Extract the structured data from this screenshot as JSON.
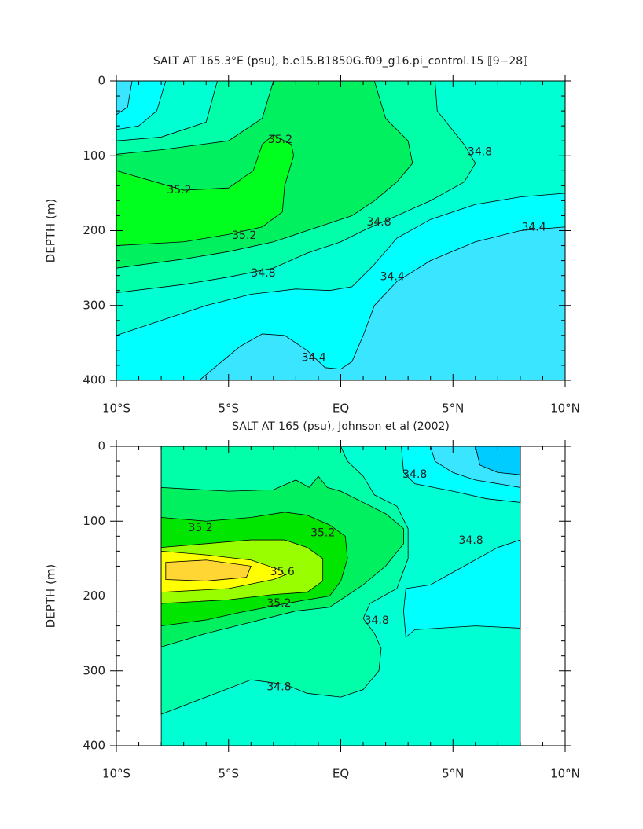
{
  "chart_data": [
    {
      "type": "contour",
      "title": "SALT AT 165.3°E (psu), b.e15.B1850G.f09_g16.pi_control.15 ⟦9−28⟧",
      "y_label": "DEPTH (m)",
      "xlim": [
        -10,
        10
      ],
      "xticks": [
        {
          "value": -10,
          "label": "10°S"
        },
        {
          "value": -5,
          "label": "5°S"
        },
        {
          "value": 0,
          "label": "EQ"
        },
        {
          "value": 5,
          "label": "5°N"
        },
        {
          "value": 10,
          "label": "10°N"
        }
      ],
      "ylim": [
        400,
        0
      ],
      "yticks": [
        0,
        100,
        200,
        300,
        400
      ],
      "regions": [
        {
          "level": 34.2,
          "color": "#3ae6ff",
          "points": [
            [
              -10,
              0
            ],
            [
              10,
              0
            ],
            [
              10,
              400
            ],
            [
              -10,
              400
            ]
          ]
        },
        {
          "level": 34.4,
          "color": "#00ffff",
          "points": [
            [
              -9.3,
              0
            ],
            [
              10,
              0
            ],
            [
              10,
              195
            ],
            [
              8,
              200
            ],
            [
              6,
              215
            ],
            [
              4,
              240
            ],
            [
              2.5,
              268
            ],
            [
              1.5,
              300
            ],
            [
              1,
              340
            ],
            [
              0.5,
              375
            ],
            [
              0,
              385
            ],
            [
              -0.7,
              383
            ],
            [
              -1.5,
              360
            ],
            [
              -2.5,
              340
            ],
            [
              -3.5,
              338
            ],
            [
              -4.5,
              355
            ],
            [
              -5.5,
              380
            ],
            [
              -6.3,
              400
            ],
            [
              -10,
              400
            ],
            [
              -10,
              45
            ],
            [
              -9.5,
              35
            ]
          ]
        },
        {
          "level": 34.6,
          "color": "#00ffd2",
          "points": [
            [
              -7.8,
              0
            ],
            [
              10,
              0
            ],
            [
              10,
              150
            ],
            [
              8,
              155
            ],
            [
              6,
              165
            ],
            [
              4,
              185
            ],
            [
              2.5,
              210
            ],
            [
              1.5,
              245
            ],
            [
              0.5,
              275
            ],
            [
              -0.5,
              280
            ],
            [
              -2,
              278
            ],
            [
              -4,
              285
            ],
            [
              -6,
              300
            ],
            [
              -8,
              320
            ],
            [
              -10,
              340
            ],
            [
              -10,
              65
            ],
            [
              -9,
              60
            ],
            [
              -8.2,
              40
            ]
          ]
        },
        {
          "level": 34.8,
          "color": "#00ffa8",
          "points": [
            [
              -5.5,
              0
            ],
            [
              4.2,
              0
            ],
            [
              4.3,
              40
            ],
            [
              5.5,
              85
            ],
            [
              6,
              110
            ],
            [
              5.5,
              135
            ],
            [
              4,
              160
            ],
            [
              2.5,
              180
            ],
            [
              1,
              200
            ],
            [
              0,
              215
            ],
            [
              -1.5,
              230
            ],
            [
              -3,
              250
            ],
            [
              -5,
              262
            ],
            [
              -7,
              272
            ],
            [
              -10,
              283
            ],
            [
              -10,
              80
            ],
            [
              -8,
              75
            ],
            [
              -6,
              55
            ]
          ]
        },
        {
          "level": 35.0,
          "color": "#00f060",
          "points": [
            [
              -3,
              0
            ],
            [
              1.5,
              0
            ],
            [
              2,
              50
            ],
            [
              3,
              80
            ],
            [
              3.2,
              110
            ],
            [
              2.5,
              135
            ],
            [
              1.5,
              160
            ],
            [
              0.5,
              180
            ],
            [
              -1,
              195
            ],
            [
              -3,
              215
            ],
            [
              -5,
              228
            ],
            [
              -7,
              238
            ],
            [
              -10,
              250
            ],
            [
              -10,
              98
            ],
            [
              -8,
              92
            ],
            [
              -5,
              80
            ],
            [
              -3.5,
              50
            ]
          ]
        },
        {
          "level": 35.2,
          "color": "#00ff1e",
          "points": [
            [
              -10,
              120
            ],
            [
              -7,
              146
            ],
            [
              -5,
              143
            ],
            [
              -3.9,
              120
            ],
            [
              -3.5,
              85
            ],
            [
              -3,
              72
            ],
            [
              -2.2,
              85
            ],
            [
              -2.1,
              100
            ],
            [
              -2.5,
              140
            ],
            [
              -2.6,
              175
            ],
            [
              -3.5,
              195
            ],
            [
              -5,
              205
            ],
            [
              -7,
              215
            ],
            [
              -10,
              220
            ]
          ]
        }
      ],
      "contour_labels": [
        {
          "level": 35.2,
          "x": -2.7,
          "y": 79
        },
        {
          "level": 35.2,
          "x": -7.2,
          "y": 146
        },
        {
          "level": 35.2,
          "x": -4.3,
          "y": 207
        },
        {
          "level": 34.8,
          "x": 6.2,
          "y": 95
        },
        {
          "level": 34.8,
          "x": 1.7,
          "y": 189
        },
        {
          "level": 34.8,
          "x": -3.45,
          "y": 257
        },
        {
          "level": 34.4,
          "x": 8.6,
          "y": 196
        },
        {
          "level": 34.4,
          "x": 2.3,
          "y": 262
        },
        {
          "level": 34.4,
          "x": -1.2,
          "y": 370
        }
      ]
    },
    {
      "type": "contour",
      "title": "SALT AT 165 (psu), Johnson et al (2002)",
      "y_label": "DEPTH (m)",
      "xlim": [
        -10,
        10
      ],
      "xticks": [
        {
          "value": -10,
          "label": "10°S"
        },
        {
          "value": -5,
          "label": "5°S"
        },
        {
          "value": 0,
          "label": "EQ"
        },
        {
          "value": 5,
          "label": "5°N"
        },
        {
          "value": 10,
          "label": "10°N"
        }
      ],
      "ylim": [
        400,
        0
      ],
      "yticks": [
        0,
        100,
        200,
        300,
        400
      ],
      "regions": [
        {
          "level": 34.6,
          "color": "#00ffd2",
          "points": [
            [
              -8,
              0
            ],
            [
              8,
              0
            ],
            [
              8,
              400
            ],
            [
              -8,
              400
            ]
          ]
        },
        {
          "level": 34.4,
          "color": "#00ffff",
          "points": [
            [
              2.7,
              0
            ],
            [
              2.8,
              35
            ],
            [
              3.3,
              50
            ],
            [
              5,
              60
            ],
            [
              6.5,
              70
            ],
            [
              8,
              75
            ],
            [
              8,
              0
            ]
          ]
        },
        {
          "level": 34.2,
          "color": "#3ae6ff",
          "points": [
            [
              4,
              0
            ],
            [
              4.2,
              20
            ],
            [
              5,
              35
            ],
            [
              6,
              45
            ],
            [
              8,
              55
            ],
            [
              8,
              0
            ]
          ]
        },
        {
          "level": 34.0,
          "color": "#00ccff",
          "points": [
            [
              6,
              0
            ],
            [
              6.2,
              25
            ],
            [
              7,
              35
            ],
            [
              8,
              38
            ],
            [
              8,
              0
            ]
          ]
        },
        {
          "level": 34.4,
          "color": "#00ffff",
          "points": [
            [
              2.9,
              190
            ],
            [
              4,
              185
            ],
            [
              5.5,
              160
            ],
            [
              7,
              135
            ],
            [
              8,
              125
            ],
            [
              8,
              243
            ],
            [
              6,
              240
            ],
            [
              3.3,
              245
            ],
            [
              2.9,
              255
            ],
            [
              2.8,
              220
            ]
          ]
        },
        {
          "level": 34.8,
          "color": "#00ffa8",
          "points": [
            [
              -8,
              0
            ],
            [
              0,
              0
            ],
            [
              0.3,
              20
            ],
            [
              1,
              40
            ],
            [
              1.5,
              65
            ],
            [
              2.5,
              80
            ],
            [
              3,
              110
            ],
            [
              3,
              150
            ],
            [
              2.5,
              190
            ],
            [
              1.3,
              210
            ],
            [
              1,
              230
            ],
            [
              1.5,
              250
            ],
            [
              1.8,
              270
            ],
            [
              1.7,
              300
            ],
            [
              1,
              325
            ],
            [
              0,
              335
            ],
            [
              -1.5,
              330
            ],
            [
              -2.5,
              318
            ],
            [
              -4,
              312
            ],
            [
              -6,
              335
            ],
            [
              -8,
              358
            ]
          ]
        },
        {
          "level": 35.0,
          "color": "#00f060",
          "points": [
            [
              -8,
              55
            ],
            [
              -5,
              60
            ],
            [
              -3,
              58
            ],
            [
              -2,
              45
            ],
            [
              -1.4,
              55
            ],
            [
              -1,
              40
            ],
            [
              -0.6,
              55
            ],
            [
              0,
              60
            ],
            [
              1,
              75
            ],
            [
              2,
              90
            ],
            [
              2.8,
              110
            ],
            [
              2.8,
              130
            ],
            [
              2,
              160
            ],
            [
              1,
              185
            ],
            [
              0,
              205
            ],
            [
              -0.5,
              215
            ],
            [
              -2,
              220
            ],
            [
              -4,
              235
            ],
            [
              -6,
              250
            ],
            [
              -8,
              268
            ]
          ]
        },
        {
          "level": 35.2,
          "color": "#00e600",
          "points": [
            [
              -8,
              95
            ],
            [
              -6,
              100
            ],
            [
              -4,
              95
            ],
            [
              -2.5,
              88
            ],
            [
              -1.5,
              92
            ],
            [
              -0.5,
              105
            ],
            [
              0.2,
              120
            ],
            [
              0.3,
              150
            ],
            [
              0,
              180
            ],
            [
              -0.5,
              200
            ],
            [
              -1.5,
              205
            ],
            [
              -2.8,
              212
            ],
            [
              -4.5,
              222
            ],
            [
              -6,
              232
            ],
            [
              -8,
              240
            ]
          ]
        },
        {
          "level": 35.4,
          "color": "#99ff00",
          "points": [
            [
              -8,
              135
            ],
            [
              -6,
              130
            ],
            [
              -4,
              125
            ],
            [
              -2.5,
              125
            ],
            [
              -1.5,
              135
            ],
            [
              -0.8,
              150
            ],
            [
              -0.8,
              180
            ],
            [
              -1.5,
              195
            ],
            [
              -3,
              198
            ],
            [
              -5,
              205
            ],
            [
              -8,
              210
            ]
          ]
        },
        {
          "level": 35.6,
          "color": "#ffff00",
          "points": [
            [
              -8,
              140
            ],
            [
              -6,
              145
            ],
            [
              -4,
              152
            ],
            [
              -2.7,
              165
            ],
            [
              -2.5,
              172
            ],
            [
              -3,
              178
            ],
            [
              -5,
              190
            ],
            [
              -8,
              195
            ]
          ]
        },
        {
          "level": 35.8,
          "color": "#ffd633",
          "points": [
            [
              -7.8,
              155
            ],
            [
              -6,
              152
            ],
            [
              -4,
              160
            ],
            [
              -4.2,
              175
            ],
            [
              -6,
              180
            ],
            [
              -7.8,
              178
            ]
          ]
        }
      ],
      "contour_labels": [
        {
          "level": 35.2,
          "x": -6.25,
          "y": 109
        },
        {
          "level": 35.2,
          "x": -0.8,
          "y": 116
        },
        {
          "level": 35.2,
          "x": -2.75,
          "y": 210
        },
        {
          "level": 35.6,
          "x": -2.6,
          "y": 168
        },
        {
          "level": 34.8,
          "x": 3.3,
          "y": 38
        },
        {
          "level": 34.8,
          "x": 5.8,
          "y": 126
        },
        {
          "level": 34.8,
          "x": 1.6,
          "y": 233
        },
        {
          "level": 34.8,
          "x": -2.75,
          "y": 322
        }
      ]
    }
  ]
}
